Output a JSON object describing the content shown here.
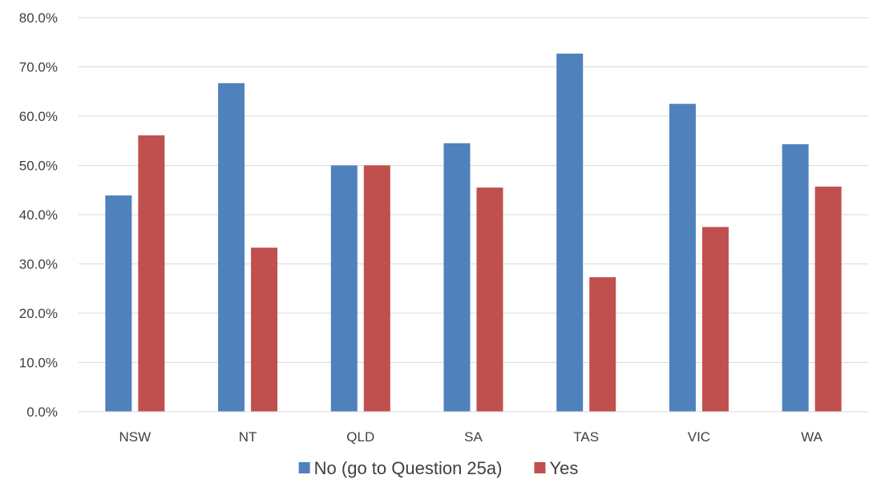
{
  "chart_data": {
    "type": "bar",
    "categories": [
      "NSW",
      "NT",
      "QLD",
      "SA",
      "TAS",
      "VIC",
      "WA"
    ],
    "series": [
      {
        "name": "No (go to Question 25a)",
        "color": "#4F81BD",
        "values": [
          43.9,
          66.7,
          50.0,
          54.5,
          72.7,
          62.5,
          54.3
        ]
      },
      {
        "name": "Yes",
        "color": "#C0504D",
        "values": [
          56.1,
          33.3,
          50.0,
          45.5,
          27.3,
          37.5,
          45.7
        ]
      }
    ],
    "ylim": [
      0,
      80
    ],
    "yticks": [
      "0.0%",
      "10.0%",
      "20.0%",
      "30.0%",
      "40.0%",
      "50.0%",
      "60.0%",
      "70.0%",
      "80.0%"
    ],
    "ytick_values": [
      0,
      10,
      20,
      30,
      40,
      50,
      60,
      70,
      80
    ],
    "grid": true,
    "gridline_color": "#D9D9D9",
    "legend_position": "bottom"
  }
}
